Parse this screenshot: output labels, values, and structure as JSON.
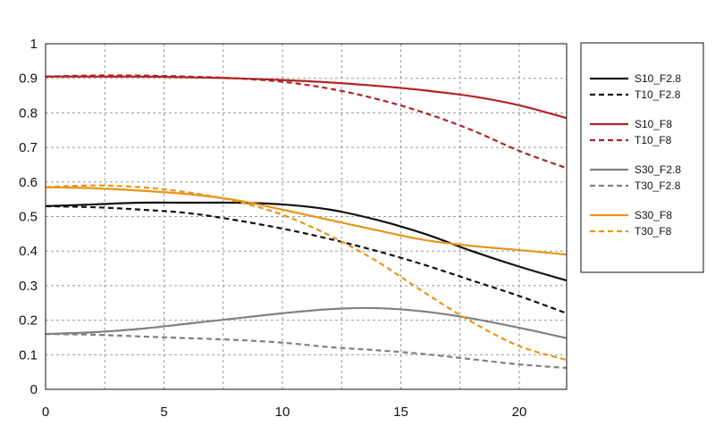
{
  "chart_data": {
    "type": "line",
    "title": "",
    "xlabel": "",
    "ylabel": "",
    "xlim": [
      0,
      22
    ],
    "ylim": [
      0,
      1
    ],
    "x_ticks": [
      0,
      5,
      10,
      15,
      20
    ],
    "y_ticks": [
      0,
      0.1,
      0.2,
      0.3,
      0.4,
      0.5,
      0.6,
      0.7,
      0.8,
      0.9,
      1
    ],
    "x_tick_labels": [
      "0",
      "5",
      "10",
      "15",
      "20"
    ],
    "y_tick_labels": [
      "0",
      "0.1",
      "0.2",
      "0.3",
      "0.4",
      "0.5",
      "0.6",
      "0.7",
      "0.8",
      "0.9",
      "1"
    ],
    "grid": true,
    "legend_position": "right",
    "series": [
      {
        "name": "S10_F2.8",
        "color": "#111111",
        "dash": false,
        "x": [
          0,
          2,
          4,
          6,
          8,
          10,
          12,
          14,
          16,
          18,
          20,
          22
        ],
        "y": [
          0.53,
          0.535,
          0.54,
          0.54,
          0.54,
          0.535,
          0.52,
          0.49,
          0.45,
          0.4,
          0.355,
          0.315
        ]
      },
      {
        "name": "T10_F2.8",
        "color": "#111111",
        "dash": true,
        "x": [
          0,
          2,
          4,
          6,
          8,
          10,
          12,
          14,
          16,
          18,
          20,
          22
        ],
        "y": [
          0.53,
          0.527,
          0.52,
          0.51,
          0.49,
          0.465,
          0.435,
          0.4,
          0.36,
          0.315,
          0.27,
          0.22
        ]
      },
      {
        "name": "S10_F8",
        "color": "#b22222",
        "dash": false,
        "x": [
          0,
          2,
          4,
          6,
          8,
          10,
          12,
          14,
          16,
          18,
          20,
          22
        ],
        "y": [
          0.905,
          0.905,
          0.905,
          0.903,
          0.9,
          0.895,
          0.888,
          0.878,
          0.865,
          0.848,
          0.822,
          0.785
        ]
      },
      {
        "name": "T10_F8",
        "color": "#b22222",
        "dash": true,
        "x": [
          0,
          2,
          4,
          6,
          8,
          10,
          12,
          14,
          16,
          18,
          20,
          22
        ],
        "y": [
          0.905,
          0.908,
          0.908,
          0.905,
          0.9,
          0.89,
          0.87,
          0.84,
          0.8,
          0.75,
          0.69,
          0.64
        ]
      },
      {
        "name": "S30_F2.8",
        "color": "#808080",
        "dash": false,
        "x": [
          0,
          2,
          4,
          6,
          8,
          10,
          12,
          14,
          16,
          18,
          20,
          22
        ],
        "y": [
          0.16,
          0.165,
          0.175,
          0.19,
          0.205,
          0.22,
          0.232,
          0.235,
          0.225,
          0.205,
          0.178,
          0.148
        ]
      },
      {
        "name": "T30_F2.8",
        "color": "#808080",
        "dash": true,
        "x": [
          0,
          2,
          4,
          6,
          8,
          10,
          12,
          14,
          16,
          18,
          20,
          22
        ],
        "y": [
          0.16,
          0.158,
          0.153,
          0.148,
          0.143,
          0.135,
          0.122,
          0.113,
          0.102,
          0.087,
          0.072,
          0.062
        ]
      },
      {
        "name": "S30_F8",
        "color": "#e8941a",
        "dash": false,
        "x": [
          0,
          2,
          4,
          6,
          8,
          10,
          12,
          14,
          16,
          18,
          20,
          22
        ],
        "y": [
          0.585,
          0.582,
          0.575,
          0.565,
          0.548,
          0.52,
          0.49,
          0.46,
          0.432,
          0.415,
          0.403,
          0.39
        ]
      },
      {
        "name": "T30_F8",
        "color": "#e8941a",
        "dash": true,
        "x": [
          0,
          2,
          4,
          6,
          8,
          10,
          12,
          14,
          16,
          18,
          20,
          22
        ],
        "y": [
          0.585,
          0.59,
          0.585,
          0.57,
          0.545,
          0.505,
          0.445,
          0.37,
          0.28,
          0.195,
          0.125,
          0.085
        ]
      }
    ]
  }
}
